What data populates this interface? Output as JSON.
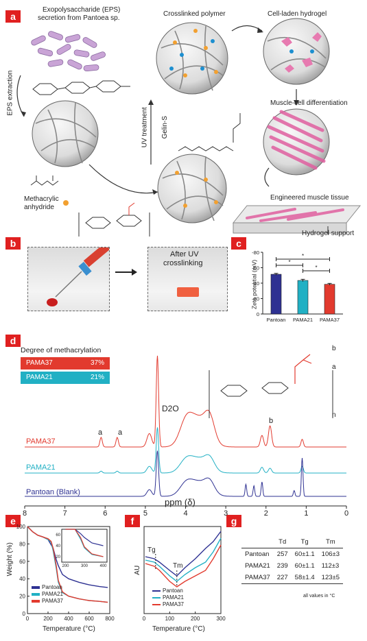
{
  "panel_labels": [
    "a",
    "b",
    "c",
    "d",
    "e",
    "f",
    "g"
  ],
  "panel_a": {
    "eps_title_1": "Exopolysaccharide (EPS)",
    "eps_title_2": "secretion from Pantoea sp.",
    "eps_extraction": "EPS extraction",
    "crosslinked_polymer": "Crosslinked polymer",
    "cell_laden_hydrogel": "Cell-laden hydrogel",
    "uv_treatment": "UV treatment",
    "gelin_s": "Gelin-S",
    "muscle_diff": "Muscle-cell differentiation",
    "methacrylic_1": "Methacrylic",
    "methacrylic_2": "anhydride",
    "engineered": "Engineered muscle tissue",
    "hydrogel_support": "Hydrogel support"
  },
  "panel_b": {
    "after_uv_1": "After UV",
    "after_uv_2": "crosslinking"
  },
  "panel_d": {
    "legend_title": "Degree of methacrylation",
    "legend_rows": [
      {
        "name": "PAMA37",
        "value": "37%",
        "color": "#e23a2e"
      },
      {
        "name": "PAMA21",
        "value": "21%",
        "color": "#21b0c4"
      }
    ],
    "trace_labels": [
      "PAMA37",
      "PAMA21",
      "Pantoan (Blank)"
    ],
    "peak_a1": "a",
    "peak_a2": "a",
    "peak_b": "b",
    "d2o": "D2O",
    "struct_a": "a",
    "struct_b": "b",
    "struct_n": "n"
  },
  "chart_data": [
    {
      "type": "bar",
      "panel": "c",
      "categories": [
        "Pantoan",
        "PAMA21",
        "PAMA37"
      ],
      "values": [
        -51.5,
        -43.5,
        -38.5
      ],
      "errors": [
        1.2,
        1.5,
        1.2
      ],
      "colors": [
        "#2e3192",
        "#21b0c4",
        "#e23a2e"
      ],
      "ylabel": "Zeta potential (mV)",
      "yticks": [
        "0",
        "-20",
        "-40",
        "-60",
        "-80"
      ],
      "ylim": [
        0,
        -80
      ],
      "significance": "*"
    },
    {
      "type": "line",
      "panel": "d",
      "xlabel": "ppm (δ)",
      "xticks": [
        "8",
        "7",
        "6",
        "5",
        "4",
        "3",
        "2",
        "1",
        "0"
      ],
      "xlim": [
        8,
        0
      ],
      "series": [
        {
          "name": "PAMA37",
          "color": "#e23a2e"
        },
        {
          "name": "PAMA21",
          "color": "#21b0c4"
        },
        {
          "name": "Pantoan (Blank)",
          "color": "#2e3192"
        }
      ]
    },
    {
      "type": "line",
      "panel": "e",
      "xlabel": "Temperature (°C)",
      "ylabel": "Weight (%)",
      "xticks": [
        "0",
        "200",
        "400",
        "600",
        "800"
      ],
      "yticks": [
        "0",
        "20",
        "40",
        "60",
        "80",
        "100"
      ],
      "xlim": [
        0,
        800
      ],
      "ylim": [
        0,
        100
      ],
      "inset_xticks": [
        "200",
        "300",
        "400"
      ],
      "inset_yticks": [
        "20",
        "40",
        "60"
      ],
      "series": [
        {
          "name": "Pantoan",
          "color": "#2e3192",
          "x": [
            0,
            50,
            100,
            150,
            200,
            250,
            280,
            300,
            340,
            400,
            500,
            600,
            700,
            780
          ],
          "y": [
            100,
            94,
            90,
            88,
            85,
            75,
            62,
            55,
            45,
            40,
            36,
            33,
            31,
            30
          ]
        },
        {
          "name": "PAMA21",
          "color": "#21b0c4",
          "x": [
            0,
            50,
            100,
            150,
            200,
            230,
            250,
            280,
            300,
            340,
            400,
            500,
            600,
            700,
            780
          ],
          "y": [
            100,
            94,
            90,
            88,
            85,
            82,
            72,
            52,
            36,
            24,
            20,
            17,
            15,
            14,
            13
          ]
        },
        {
          "name": "PAMA37",
          "color": "#e23a2e",
          "x": [
            0,
            50,
            100,
            150,
            200,
            230,
            250,
            280,
            300,
            340,
            400,
            500,
            600,
            700,
            780
          ],
          "y": [
            100,
            94,
            90,
            88,
            86,
            83,
            75,
            55,
            38,
            25,
            20,
            17,
            15,
            14,
            13
          ]
        }
      ]
    },
    {
      "type": "line",
      "panel": "f",
      "xlabel": "Temperature (°C)",
      "ylabel": "AU",
      "xticks": [
        "0",
        "100",
        "200",
        "300"
      ],
      "xlim": [
        0,
        300
      ],
      "annotations": [
        "Tg",
        "Tm"
      ],
      "series": [
        {
          "name": "Pantoan",
          "color": "#2e3192"
        },
        {
          "name": "PAMA21",
          "color": "#21b0c4"
        },
        {
          "name": "PAMA37",
          "color": "#e23a2e"
        }
      ]
    },
    {
      "type": "table",
      "panel": "g",
      "columns": [
        "",
        "Td",
        "Tg",
        "Tm"
      ],
      "rows": [
        [
          "Pantoan",
          "257",
          "60±1.1",
          "106±3"
        ],
        [
          "PAMA21",
          "239",
          "60±1.1",
          "112±3"
        ],
        [
          "PAMA37",
          "227",
          "58±1.4",
          "123±5"
        ]
      ],
      "footnote": "all values in °C"
    }
  ]
}
